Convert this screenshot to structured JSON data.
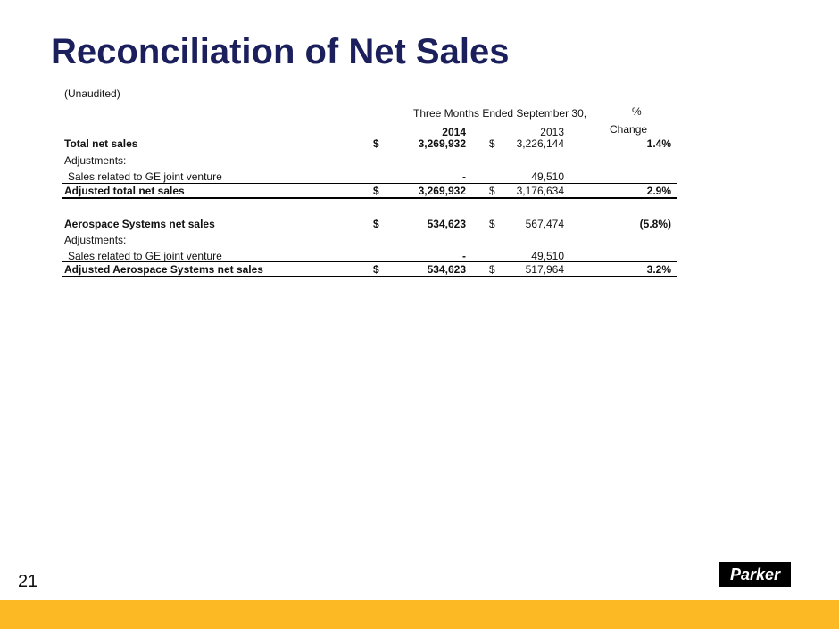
{
  "header": {
    "title": "Reconciliation of Net Sales",
    "note": "(Unaudited)"
  },
  "table": {
    "columns": {
      "period": "Three Months Ended September 30,",
      "pct": "%",
      "year1": "2014",
      "year2": "2013",
      "change": "Change"
    },
    "rows": [
      {
        "label": "Total net sales",
        "cur1": "$",
        "v1": "3,269,932",
        "cur2": "$",
        "v2": "3,226,144",
        "change": "1.4%"
      },
      {
        "label": "Adjustments:"
      },
      {
        "label": "Sales related to GE joint venture",
        "v1": "-",
        "v2": "49,510"
      },
      {
        "label": "Adjusted total net sales",
        "cur1": "$",
        "v1": "3,269,932",
        "cur2": "$",
        "v2": "3,176,634",
        "change": "2.9%"
      },
      {
        "label": "Aerospace Systems net sales",
        "cur1": "$",
        "v1": "534,623",
        "cur2": "$",
        "v2": "567,474",
        "change": "(5.8%)"
      },
      {
        "label": "Adjustments:"
      },
      {
        "label": "Sales related to GE joint venture",
        "v1": "-",
        "v2": "49,510"
      },
      {
        "label": "Adjusted Aerospace Systems net sales",
        "cur1": "$",
        "v1": "534,623",
        "cur2": "$",
        "v2": "517,964",
        "change": "3.2%"
      }
    ]
  },
  "footer": {
    "page": "21",
    "logo": "Parker"
  }
}
